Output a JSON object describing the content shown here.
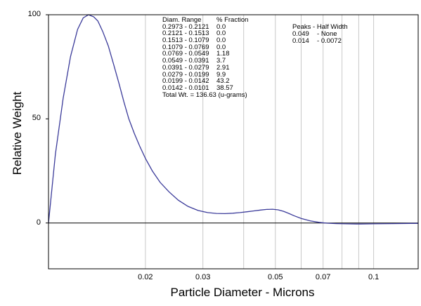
{
  "chart_data": {
    "type": "line",
    "xlabel": "Particle Diameter  -  Microns",
    "ylabel": "Relative Weight",
    "x_scale": "log",
    "xlim": [
      0.0101,
      0.1369
    ],
    "ylim": [
      -22,
      100
    ],
    "y_ticks": [
      {
        "value": 100,
        "label": "100"
      },
      {
        "value": 50,
        "label": "50"
      },
      {
        "value": 0,
        "label": "0"
      }
    ],
    "x_ticks": [
      {
        "value": 0.02,
        "label": "0.02"
      },
      {
        "value": 0.03,
        "label": "0.03"
      },
      {
        "value": 0.05,
        "label": "0.05"
      },
      {
        "value": 0.07,
        "label": "0.07"
      },
      {
        "value": 0.1,
        "label": "0.1"
      }
    ],
    "x_gridlines": [
      0.02,
      0.03,
      0.04,
      0.05,
      0.06,
      0.07,
      0.08,
      0.09,
      0.1
    ],
    "grid": true,
    "line_color": "#3b3b9a",
    "series": [
      {
        "x": [
          0.0101,
          0.0106,
          0.0112,
          0.0118,
          0.0124,
          0.0129,
          0.0134,
          0.0139,
          0.0143,
          0.0148,
          0.0154,
          0.016,
          0.0166,
          0.0172,
          0.0178,
          0.0185,
          0.0192,
          0.02,
          0.021,
          0.0222,
          0.0236,
          0.0252,
          0.027,
          0.029,
          0.031,
          0.033,
          0.035,
          0.037,
          0.039,
          0.041,
          0.043,
          0.045,
          0.047,
          0.049,
          0.051,
          0.053,
          0.055,
          0.057,
          0.06,
          0.064,
          0.068,
          0.072,
          0.077,
          0.082,
          0.09,
          0.1,
          0.115,
          0.13,
          0.1369
        ],
        "y": [
          0,
          33,
          60,
          80,
          93,
          98.5,
          100,
          99,
          97,
          92,
          85,
          76,
          67,
          58,
          50,
          43,
          37,
          31,
          25,
          19.5,
          15,
          11,
          8,
          6,
          5,
          4.6,
          4.5,
          4.7,
          5,
          5.4,
          5.8,
          6.2,
          6.5,
          6.6,
          6.3,
          5.6,
          4.6,
          3.5,
          2.2,
          1.0,
          0.3,
          -0.1,
          -0.3,
          -0.4,
          -0.5,
          -0.4,
          -0.3,
          -0.2,
          -0.2
        ]
      }
    ],
    "table": {
      "header": [
        "Diam. Range",
        "% Fraction"
      ],
      "rows": [
        [
          "0.2973 - 0.2121",
          "0.0"
        ],
        [
          "0.2121 - 0.1513",
          "0.0"
        ],
        [
          "0.1513 - 0.1079",
          "0.0"
        ],
        [
          "0.1079 - 0.0769",
          "0.0"
        ],
        [
          "0.0769 - 0.0549",
          "1.18"
        ],
        [
          "0.0549 - 0.0391",
          "3.7"
        ],
        [
          "0.0391 - 0.0279",
          "2.91"
        ],
        [
          "0.0279 - 0.0199",
          "9.9"
        ],
        [
          "0.0199 - 0.0142",
          "43.2"
        ],
        [
          "0.0142 - 0.0101",
          "38.57"
        ]
      ],
      "total": "Total Wt. = 136.63 (u-grams)"
    },
    "peaks": {
      "header": [
        "Peaks",
        "Half Width"
      ],
      "rows": [
        [
          "0.049",
          "None"
        ],
        [
          "0.014",
          "0.0072"
        ]
      ]
    }
  }
}
